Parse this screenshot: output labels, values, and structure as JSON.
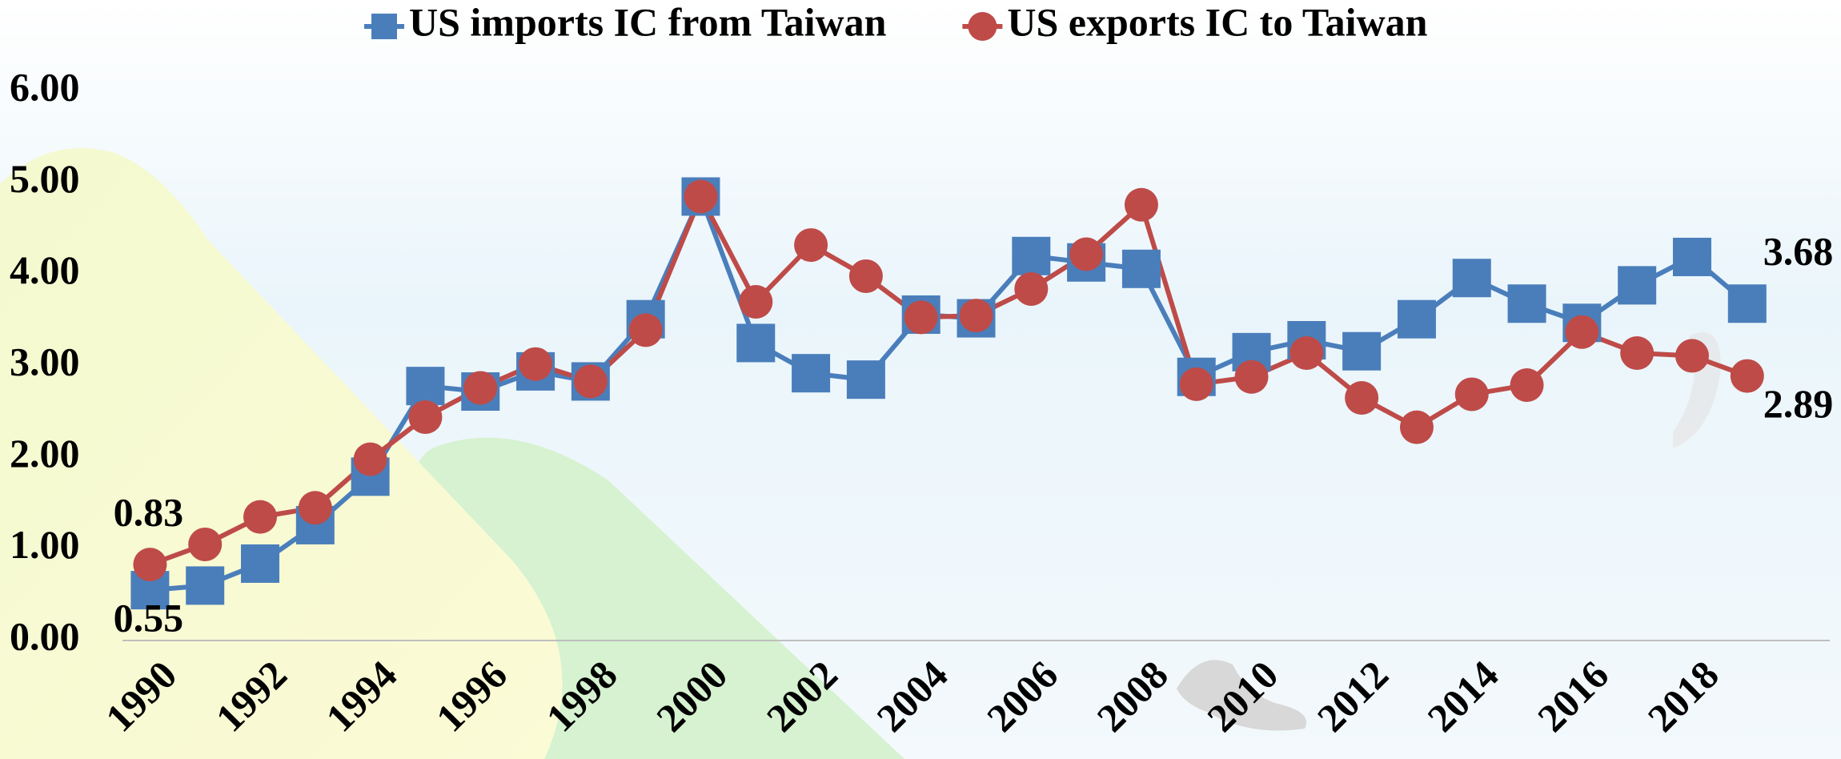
{
  "chart_data": {
    "type": "line",
    "x": [
      1990,
      1991,
      1992,
      1993,
      1994,
      1995,
      1996,
      1997,
      1998,
      1999,
      2000,
      2001,
      2002,
      2003,
      2004,
      2005,
      2006,
      2007,
      2008,
      2009,
      2010,
      2011,
      2012,
      2013,
      2014,
      2015,
      2016,
      2017,
      2018,
      2019
    ],
    "series": [
      {
        "name": "US imports IC from Taiwan",
        "color": "#4a7ebb",
        "marker": "square",
        "values": [
          0.55,
          0.6,
          0.84,
          1.26,
          1.79,
          2.78,
          2.72,
          2.94,
          2.83,
          3.51,
          4.85,
          3.25,
          2.92,
          2.85,
          3.56,
          3.52,
          4.2,
          4.13,
          4.06,
          2.88,
          3.15,
          3.28,
          3.16,
          3.51,
          3.96,
          3.68,
          3.47,
          3.88,
          4.19,
          3.68
        ]
      },
      {
        "name": "US exports IC to Taiwan",
        "color": "#be4b48",
        "marker": "circle",
        "values": [
          0.83,
          1.05,
          1.35,
          1.45,
          1.98,
          2.44,
          2.76,
          3.02,
          2.83,
          3.39,
          4.85,
          3.7,
          4.32,
          3.98,
          3.53,
          3.55,
          3.84,
          4.22,
          4.76,
          2.8,
          2.88,
          3.14,
          2.65,
          2.33,
          2.69,
          2.79,
          3.37,
          3.14,
          3.11,
          2.89
        ]
      }
    ],
    "xlim": [
      1989.5,
      2020.5
    ],
    "xticks": [
      1990,
      1992,
      1994,
      1996,
      1998,
      2000,
      2002,
      2004,
      2006,
      2008,
      2010,
      2012,
      2014,
      2016,
      2018
    ],
    "ylim": [
      0,
      6
    ],
    "yticks": [
      {
        "value": 0,
        "label": "0.00"
      },
      {
        "value": 1,
        "label": "1.00"
      },
      {
        "value": 2,
        "label": "2.00"
      },
      {
        "value": 3,
        "label": "3.00"
      },
      {
        "value": 4,
        "label": "4.00"
      },
      {
        "value": 5,
        "label": "5.00"
      },
      {
        "value": 6,
        "label": "6.00"
      }
    ],
    "grid": false,
    "legend": "top"
  }
}
